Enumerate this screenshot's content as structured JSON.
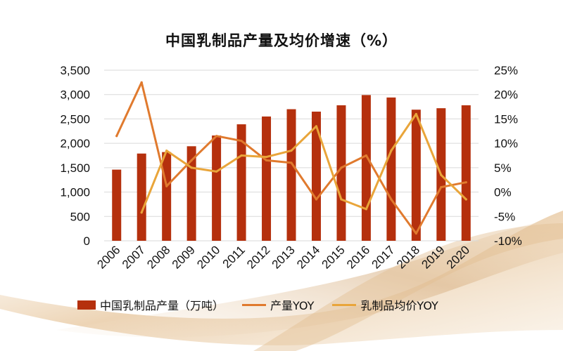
{
  "chart_data": {
    "type": "bar+line",
    "title": "中国乳制品产量及均价增速（%）",
    "categories": [
      "2006",
      "2007",
      "2008",
      "2009",
      "2010",
      "2011",
      "2012",
      "2013",
      "2014",
      "2015",
      "2016",
      "2017",
      "2018",
      "2019",
      "2020"
    ],
    "left_axis": {
      "ylim": [
        0,
        3500
      ],
      "ticks": [
        "0",
        "500",
        "1,000",
        "1,500",
        "2,000",
        "2,500",
        "3,000",
        "3,500"
      ]
    },
    "right_axis": {
      "ylim": [
        -10,
        25
      ],
      "ticks": [
        "-10%",
        "-5%",
        "0%",
        "5%",
        "10%",
        "15%",
        "20%",
        "25%"
      ]
    },
    "series": [
      {
        "name": "中国乳制品产量（万吨）",
        "type": "bar",
        "axis": "left",
        "color": "#B5300D",
        "values": [
          1460,
          1790,
          1820,
          1940,
          2160,
          2390,
          2550,
          2700,
          2650,
          2780,
          2990,
          2940,
          2690,
          2720,
          2780
        ]
      },
      {
        "name": "产量YOY",
        "type": "line",
        "axis": "right",
        "color": "#E07A2E",
        "values": [
          11.5,
          22.5,
          1.2,
          6.5,
          11.5,
          10.5,
          6.5,
          6.0,
          -1.5,
          5.0,
          7.5,
          -1.5,
          -8.5,
          1.0,
          2.0
        ]
      },
      {
        "name": "乳制品均价YOY",
        "type": "line",
        "axis": "right",
        "color": "#E9A53A",
        "values": [
          null,
          -4.2,
          8.5,
          5.0,
          4.2,
          7.5,
          7.2,
          8.5,
          13.5,
          -1.5,
          -3.5,
          8.5,
          16.0,
          3.5,
          -1.5
        ]
      }
    ],
    "grid": "horizontal",
    "legend_position": "bottom"
  }
}
